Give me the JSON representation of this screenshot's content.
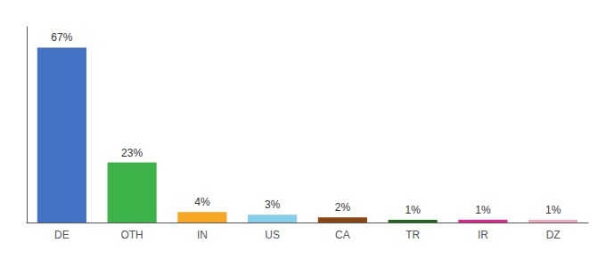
{
  "chart_data": {
    "type": "bar",
    "categories": [
      "DE",
      "OTH",
      "IN",
      "US",
      "CA",
      "TR",
      "IR",
      "DZ"
    ],
    "values": [
      67,
      23,
      4,
      3,
      2,
      1,
      1,
      1
    ],
    "value_labels": [
      "67%",
      "23%",
      "4%",
      "3%",
      "2%",
      "1%",
      "1%",
      "1%"
    ],
    "colors": [
      "#4472c4",
      "#3db34a",
      "#f5a623",
      "#87ceeb",
      "#8b4513",
      "#1a6b1a",
      "#e91e8c",
      "#f4a8b8"
    ],
    "ylim": [
      0,
      75
    ],
    "grid": false,
    "data_labels": true,
    "tick_labels": "x"
  }
}
